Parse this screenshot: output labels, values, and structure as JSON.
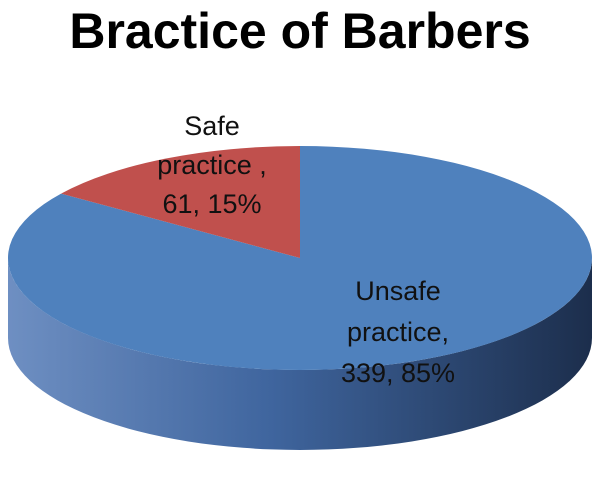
{
  "chart_data": {
    "type": "pie",
    "title": "Bractice of Barbers",
    "style": "3d",
    "slices": [
      {
        "name": "Safe practice",
        "value": 61,
        "percent": 15,
        "label_lines": [
          "Safe",
          "practice ,",
          "61, 15%"
        ],
        "color": "#C0504D"
      },
      {
        "name": "Unsafe practice",
        "value": 339,
        "percent": 85,
        "label_lines": [
          "Unsafe",
          "practice,",
          "339, 85%"
        ],
        "color": "#4F81BD"
      }
    ]
  }
}
